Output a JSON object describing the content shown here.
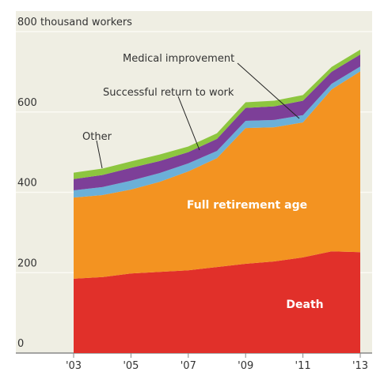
{
  "chart_data": {
    "type": "stacked-area",
    "x": [
      2003,
      2004,
      2005,
      2006,
      2007,
      2008,
      2009,
      2010,
      2011,
      2012,
      2013
    ],
    "xlim": [
      2003,
      2013
    ],
    "xticks": [
      {
        "value": 2003,
        "label": "'03"
      },
      {
        "value": 2005,
        "label": "'05"
      },
      {
        "value": 2007,
        "label": "'07"
      },
      {
        "value": 2009,
        "label": "'09"
      },
      {
        "value": 2011,
        "label": "'11"
      },
      {
        "value": 2013,
        "label": "'13"
      }
    ],
    "ylim": [
      0,
      800
    ],
    "yticks": [
      0,
      200,
      400,
      600,
      {
        "value": 800,
        "label": "800 thousand workers"
      }
    ],
    "grid": true,
    "series": [
      {
        "name": "Death",
        "color": "#e1302a",
        "values": [
          185,
          189,
          198,
          202,
          206,
          214,
          222,
          228,
          238,
          253,
          251
        ]
      },
      {
        "name": "Full retirement age",
        "color": "#f39321",
        "values": [
          202,
          204,
          209,
          224,
          246,
          271,
          338,
          334,
          336,
          403,
          450
        ]
      },
      {
        "name": "Successful return to work",
        "color": "#6bb0d8",
        "values": [
          18,
          20,
          22,
          22,
          20,
          18,
          18,
          18,
          18,
          14,
          12
        ]
      },
      {
        "name": "Medical improvement",
        "color": "#7d3f98",
        "values": [
          28,
          30,
          32,
          30,
          28,
          30,
          32,
          34,
          36,
          30,
          30
        ]
      },
      {
        "name": "Other",
        "color": "#8dc63f",
        "values": [
          16,
          16,
          16,
          16,
          14,
          14,
          14,
          14,
          14,
          12,
          12
        ]
      }
    ]
  }
}
